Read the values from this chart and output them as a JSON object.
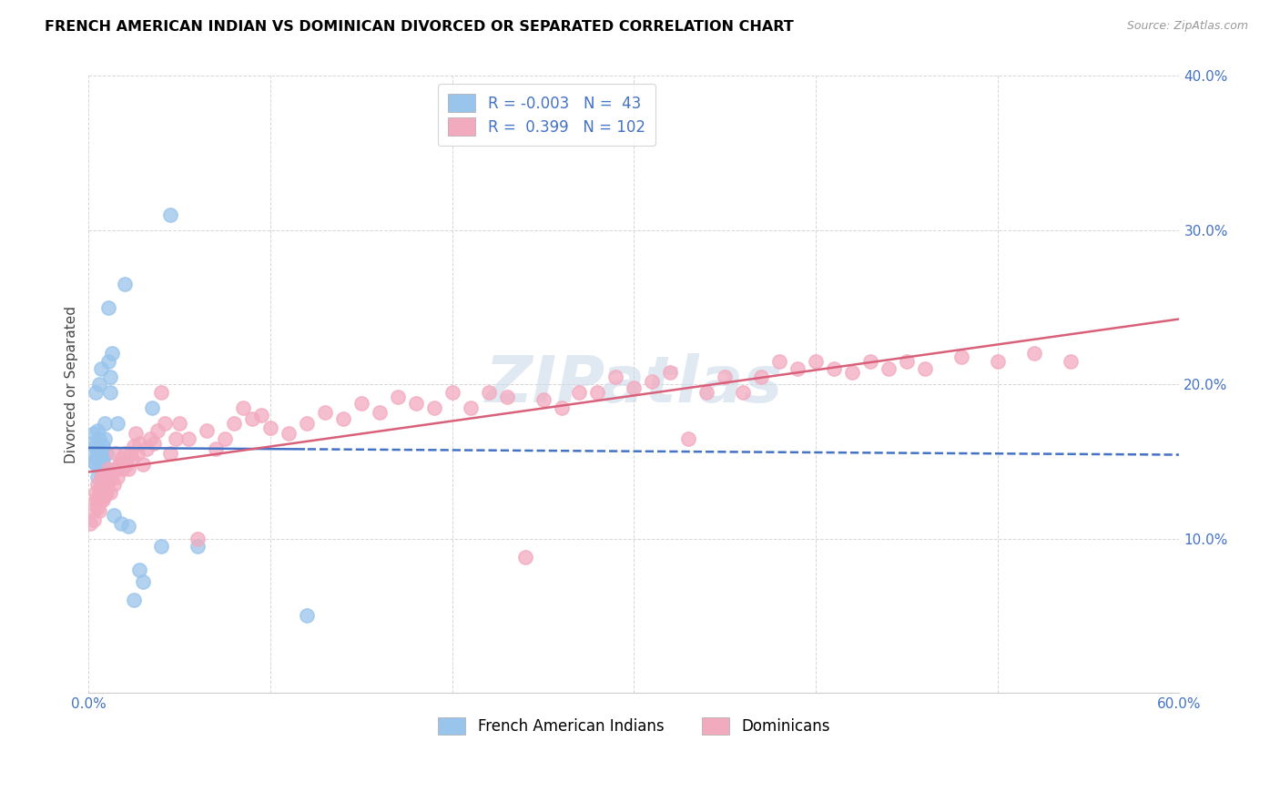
{
  "title": "FRENCH AMERICAN INDIAN VS DOMINICAN DIVORCED OR SEPARATED CORRELATION CHART",
  "source": "Source: ZipAtlas.com",
  "ylabel": "Divorced or Separated",
  "xlim": [
    0.0,
    0.6
  ],
  "ylim": [
    0.0,
    0.4
  ],
  "xticks": [
    0.0,
    0.1,
    0.2,
    0.3,
    0.4,
    0.5,
    0.6
  ],
  "yticks": [
    0.0,
    0.1,
    0.2,
    0.3,
    0.4
  ],
  "blue_color": "#99C4EC",
  "pink_color": "#F2AABF",
  "blue_line_color": "#4472C4",
  "pink_line_color": "#D9607A",
  "blue_legend_label": "R = -0.003   N =  43",
  "pink_legend_label": "R =  0.399   N = 102",
  "blue_bottom_label": "French American Indians",
  "pink_bottom_label": "Dominicans",
  "watermark": "ZIPatlas",
  "blue_x": [
    0.001,
    0.002,
    0.003,
    0.003,
    0.004,
    0.004,
    0.004,
    0.005,
    0.005,
    0.005,
    0.005,
    0.006,
    0.006,
    0.006,
    0.007,
    0.007,
    0.007,
    0.008,
    0.008,
    0.008,
    0.009,
    0.009,
    0.01,
    0.01,
    0.011,
    0.011,
    0.012,
    0.012,
    0.013,
    0.014,
    0.015,
    0.016,
    0.018,
    0.02,
    0.022,
    0.025,
    0.028,
    0.03,
    0.035,
    0.04,
    0.045,
    0.06,
    0.12
  ],
  "blue_y": [
    0.155,
    0.162,
    0.15,
    0.168,
    0.195,
    0.148,
    0.16,
    0.155,
    0.152,
    0.17,
    0.14,
    0.158,
    0.165,
    0.2,
    0.145,
    0.155,
    0.21,
    0.152,
    0.148,
    0.16,
    0.165,
    0.175,
    0.14,
    0.155,
    0.25,
    0.215,
    0.195,
    0.205,
    0.22,
    0.115,
    0.145,
    0.175,
    0.11,
    0.265,
    0.108,
    0.06,
    0.08,
    0.072,
    0.185,
    0.095,
    0.31,
    0.095,
    0.05
  ],
  "pink_x": [
    0.001,
    0.002,
    0.003,
    0.004,
    0.004,
    0.005,
    0.005,
    0.005,
    0.006,
    0.006,
    0.006,
    0.007,
    0.007,
    0.007,
    0.008,
    0.008,
    0.008,
    0.009,
    0.009,
    0.01,
    0.01,
    0.011,
    0.011,
    0.012,
    0.012,
    0.013,
    0.014,
    0.015,
    0.015,
    0.016,
    0.017,
    0.018,
    0.019,
    0.02,
    0.021,
    0.022,
    0.023,
    0.024,
    0.025,
    0.026,
    0.027,
    0.028,
    0.03,
    0.032,
    0.034,
    0.036,
    0.038,
    0.04,
    0.042,
    0.045,
    0.048,
    0.05,
    0.055,
    0.06,
    0.065,
    0.07,
    0.075,
    0.08,
    0.085,
    0.09,
    0.095,
    0.1,
    0.11,
    0.12,
    0.13,
    0.14,
    0.15,
    0.16,
    0.17,
    0.18,
    0.19,
    0.2,
    0.21,
    0.22,
    0.23,
    0.24,
    0.25,
    0.26,
    0.27,
    0.28,
    0.29,
    0.3,
    0.31,
    0.32,
    0.33,
    0.34,
    0.35,
    0.36,
    0.37,
    0.38,
    0.39,
    0.4,
    0.41,
    0.42,
    0.43,
    0.44,
    0.45,
    0.46,
    0.48,
    0.5,
    0.52,
    0.54
  ],
  "pink_y": [
    0.11,
    0.118,
    0.112,
    0.125,
    0.13,
    0.12,
    0.135,
    0.125,
    0.128,
    0.132,
    0.118,
    0.13,
    0.125,
    0.14,
    0.132,
    0.125,
    0.14,
    0.135,
    0.128,
    0.13,
    0.14,
    0.138,
    0.145,
    0.13,
    0.138,
    0.142,
    0.135,
    0.145,
    0.155,
    0.14,
    0.148,
    0.152,
    0.145,
    0.155,
    0.148,
    0.145,
    0.155,
    0.152,
    0.16,
    0.168,
    0.155,
    0.162,
    0.148,
    0.158,
    0.165,
    0.162,
    0.17,
    0.195,
    0.175,
    0.155,
    0.165,
    0.175,
    0.165,
    0.1,
    0.17,
    0.158,
    0.165,
    0.175,
    0.185,
    0.178,
    0.18,
    0.172,
    0.168,
    0.175,
    0.182,
    0.178,
    0.188,
    0.182,
    0.192,
    0.188,
    0.185,
    0.195,
    0.185,
    0.195,
    0.192,
    0.088,
    0.19,
    0.185,
    0.195,
    0.195,
    0.205,
    0.198,
    0.202,
    0.208,
    0.165,
    0.195,
    0.205,
    0.195,
    0.205,
    0.215,
    0.21,
    0.215,
    0.21,
    0.208,
    0.215,
    0.21,
    0.215,
    0.21,
    0.218,
    0.215,
    0.22,
    0.215
  ]
}
